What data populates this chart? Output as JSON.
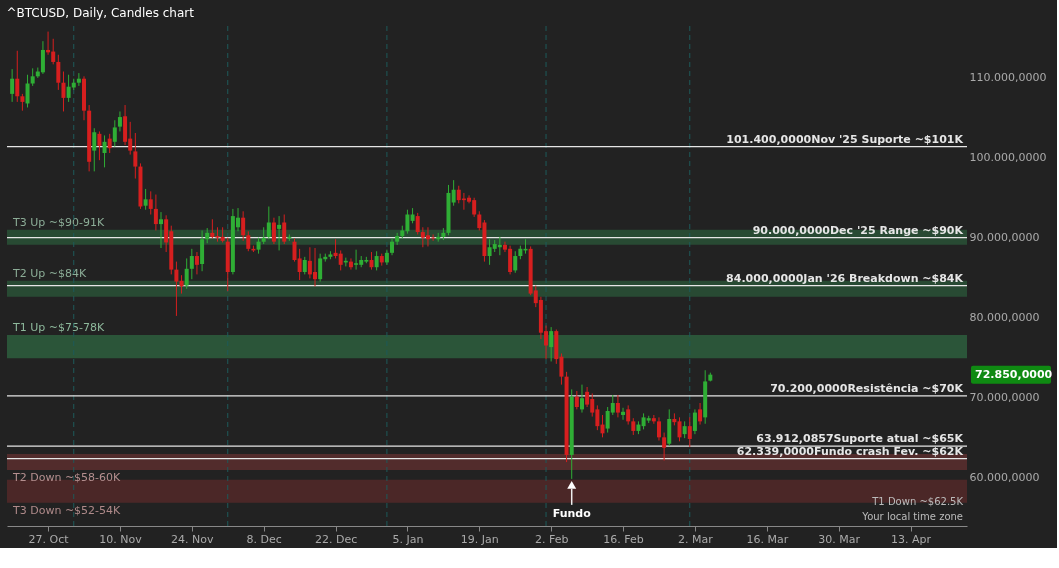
{
  "chart_data": {
    "type": "candlestick",
    "title": "^BTCUSD, Daily, Candles chart",
    "x": [
      "2025-10-20",
      "2025-10-21",
      "2025-10-22",
      "2025-10-23",
      "2025-10-24",
      "2025-10-25",
      "2025-10-26",
      "2025-10-27",
      "2025-10-28",
      "2025-10-29",
      "2025-10-30",
      "2025-10-31",
      "2025-11-01",
      "2025-11-02",
      "2025-11-03",
      "2025-11-04",
      "2025-11-05",
      "2025-11-06",
      "2025-11-07",
      "2025-11-08",
      "2025-11-09",
      "2025-11-10",
      "2025-11-11",
      "2025-11-12",
      "2025-11-13",
      "2025-11-14",
      "2025-11-15",
      "2025-11-16",
      "2025-11-17",
      "2025-11-18",
      "2025-11-19",
      "2025-11-20",
      "2025-11-21",
      "2025-11-22",
      "2025-11-23",
      "2025-11-24",
      "2025-11-25",
      "2025-11-26",
      "2025-11-27",
      "2025-11-28",
      "2025-11-29",
      "2025-11-30",
      "2025-12-01",
      "2025-12-02",
      "2025-12-03",
      "2025-12-04",
      "2025-12-05",
      "2025-12-06",
      "2025-12-07",
      "2025-12-08",
      "2025-12-09",
      "2025-12-10",
      "2025-12-11",
      "2025-12-12",
      "2025-12-13",
      "2025-12-14",
      "2025-12-15",
      "2025-12-16",
      "2025-12-17",
      "2025-12-18",
      "2025-12-19",
      "2025-12-20",
      "2025-12-21",
      "2025-12-22",
      "2025-12-23",
      "2025-12-24",
      "2025-12-25",
      "2025-12-26",
      "2025-12-27",
      "2025-12-28",
      "2025-12-29",
      "2025-12-30",
      "2025-12-31",
      "2026-01-01",
      "2026-01-02",
      "2026-01-03",
      "2026-01-04",
      "2026-01-05",
      "2026-01-06",
      "2026-01-07",
      "2026-01-08",
      "2026-01-09",
      "2026-01-10",
      "2026-01-11",
      "2026-01-12",
      "2026-01-13",
      "2026-01-14",
      "2026-01-15",
      "2026-01-16",
      "2026-01-17",
      "2026-01-18",
      "2026-01-19",
      "2026-01-20",
      "2026-01-21",
      "2026-01-22",
      "2026-01-23",
      "2026-01-24",
      "2026-01-25",
      "2026-01-26",
      "2026-01-27",
      "2026-01-28",
      "2026-01-29",
      "2026-01-30",
      "2026-01-31",
      "2026-02-01",
      "2026-02-02",
      "2026-02-03",
      "2026-02-04",
      "2026-02-05",
      "2026-02-06",
      "2026-02-07",
      "2026-02-08",
      "2026-02-09",
      "2026-02-10",
      "2026-02-11",
      "2026-02-12",
      "2026-02-13",
      "2026-02-14",
      "2026-02-15",
      "2026-02-16",
      "2026-02-17",
      "2026-02-18",
      "2026-02-19",
      "2026-02-20",
      "2026-02-21",
      "2026-02-22",
      "2026-02-23",
      "2026-02-24",
      "2026-02-25",
      "2026-02-26",
      "2026-02-27",
      "2026-02-28",
      "2026-03-01",
      "2026-03-02",
      "2026-03-03",
      "2026-03-04",
      "2026-03-05"
    ],
    "ohlc": [
      [
        108000,
        111100,
        107000,
        109900
      ],
      [
        109900,
        113400,
        107000,
        107700
      ],
      [
        107700,
        108000,
        105900,
        107000
      ],
      [
        106800,
        110400,
        106300,
        109300
      ],
      [
        109300,
        111200,
        109000,
        110200
      ],
      [
        110200,
        111300,
        110000,
        110800
      ],
      [
        110700,
        114600,
        110500,
        113500
      ],
      [
        113500,
        115800,
        112900,
        113200
      ],
      [
        113300,
        114900,
        111700,
        112000
      ],
      [
        112000,
        112900,
        108500,
        109400
      ],
      [
        109400,
        110800,
        105800,
        107500
      ],
      [
        107500,
        110400,
        107000,
        108900
      ],
      [
        108800,
        109900,
        108500,
        109400
      ],
      [
        109400,
        110600,
        109000,
        109900
      ],
      [
        109900,
        110200,
        104700,
        105900
      ],
      [
        105900,
        106600,
        98300,
        99500
      ],
      [
        100900,
        103700,
        98300,
        103200
      ],
      [
        103000,
        103300,
        99700,
        101500
      ],
      [
        100600,
        102800,
        98800,
        102000
      ],
      [
        102400,
        103000,
        100600,
        101200
      ],
      [
        102000,
        104700,
        101400,
        103800
      ],
      [
        103900,
        105800,
        103300,
        105100
      ],
      [
        105200,
        106600,
        101600,
        102000
      ],
      [
        102400,
        104500,
        100400,
        100900
      ],
      [
        100800,
        103100,
        97400,
        98900
      ],
      [
        98900,
        99300,
        93600,
        93900
      ],
      [
        94000,
        96100,
        93500,
        94800
      ],
      [
        94800,
        95800,
        92900,
        93600
      ],
      [
        93600,
        95400,
        90900,
        91700
      ],
      [
        91700,
        93200,
        88700,
        92300
      ],
      [
        92300,
        92800,
        88200,
        89400
      ],
      [
        90800,
        91500,
        85400,
        86000
      ],
      [
        86000,
        87000,
        80200,
        84500
      ],
      [
        84600,
        85300,
        83000,
        83900
      ],
      [
        84000,
        87400,
        83600,
        86100
      ],
      [
        86100,
        88600,
        84800,
        87700
      ],
      [
        87700,
        88200,
        85400,
        86600
      ],
      [
        86700,
        90900,
        85800,
        89800
      ],
      [
        89800,
        91200,
        89300,
        90600
      ],
      [
        90600,
        92300,
        89900,
        90100
      ],
      [
        90200,
        91300,
        89500,
        90000
      ],
      [
        90100,
        91300,
        89400,
        89600
      ],
      [
        89500,
        90000,
        83300,
        85700
      ],
      [
        85700,
        93600,
        85400,
        92700
      ],
      [
        91300,
        93700,
        90800,
        92500
      ],
      [
        92500,
        93300,
        89600,
        90300
      ],
      [
        90300,
        90800,
        88300,
        88600
      ],
      [
        88600,
        89000,
        88200,
        88400
      ],
      [
        88500,
        90000,
        88000,
        89500
      ],
      [
        89500,
        91300,
        89200,
        90000
      ],
      [
        90100,
        93900,
        89800,
        91900
      ],
      [
        91900,
        92500,
        89200,
        89500
      ],
      [
        91100,
        92700,
        88400,
        91600
      ],
      [
        91900,
        92900,
        89200,
        89500
      ],
      [
        89900,
        90400,
        89600,
        90100
      ],
      [
        89500,
        89900,
        87000,
        87200
      ],
      [
        87400,
        88600,
        84700,
        85700
      ],
      [
        85700,
        87600,
        85400,
        87200
      ],
      [
        87100,
        88800,
        84900,
        85400
      ],
      [
        85700,
        88700,
        83900,
        84800
      ],
      [
        84800,
        88000,
        84500,
        87400
      ],
      [
        87300,
        88000,
        87000,
        87600
      ],
      [
        87600,
        88300,
        87300,
        87900
      ],
      [
        88100,
        89800,
        87400,
        87700
      ],
      [
        88000,
        88400,
        85900,
        86600
      ],
      [
        86900,
        87500,
        86400,
        87100
      ],
      [
        87000,
        87400,
        86000,
        86300
      ],
      [
        86600,
        88500,
        86000,
        86800
      ],
      [
        86600,
        87700,
        86300,
        87200
      ],
      [
        87000,
        87600,
        86800,
        87200
      ],
      [
        87200,
        88200,
        86000,
        86300
      ],
      [
        86300,
        88300,
        85900,
        87700
      ],
      [
        87700,
        88000,
        86500,
        86900
      ],
      [
        86900,
        88500,
        86600,
        88100
      ],
      [
        88100,
        89900,
        87800,
        89500
      ],
      [
        89500,
        90600,
        89100,
        90200
      ],
      [
        90200,
        91500,
        89900,
        90900
      ],
      [
        90800,
        93500,
        90500,
        92900
      ],
      [
        92100,
        93700,
        91800,
        92900
      ],
      [
        92700,
        93100,
        90400,
        90700
      ],
      [
        90700,
        91300,
        88800,
        90000
      ],
      [
        90300,
        91300,
        88900,
        89800
      ],
      [
        90000,
        90400,
        89600,
        89900
      ],
      [
        89800,
        90600,
        89500,
        90100
      ],
      [
        90100,
        91200,
        89700,
        90600
      ],
      [
        90600,
        96600,
        90300,
        95600
      ],
      [
        94400,
        97200,
        94000,
        96000
      ],
      [
        96000,
        96500,
        94300,
        94700
      ],
      [
        94900,
        95600,
        93500,
        94700
      ],
      [
        95000,
        95300,
        94300,
        94500
      ],
      [
        94700,
        95000,
        92600,
        92900
      ],
      [
        92900,
        93300,
        90900,
        91200
      ],
      [
        91900,
        92200,
        87000,
        87700
      ],
      [
        87700,
        89800,
        86600,
        88800
      ],
      [
        88600,
        89700,
        88200,
        89200
      ],
      [
        88800,
        90100,
        87800,
        89100
      ],
      [
        89100,
        89500,
        88200,
        88500
      ],
      [
        88600,
        89000,
        85400,
        85700
      ],
      [
        85900,
        88300,
        85600,
        87700
      ],
      [
        87700,
        89000,
        87300,
        88600
      ],
      [
        88400,
        89800,
        88000,
        88600
      ],
      [
        88600,
        88900,
        82800,
        83000
      ],
      [
        83400,
        84000,
        81300,
        81800
      ],
      [
        82200,
        82600,
        77300,
        78100
      ],
      [
        78300,
        79000,
        74800,
        76500
      ],
      [
        76300,
        78800,
        74500,
        78300
      ],
      [
        78300,
        78500,
        74200,
        74800
      ],
      [
        75100,
        75500,
        71600,
        72600
      ],
      [
        72600,
        73200,
        61900,
        62800
      ],
      [
        62800,
        71000,
        59800,
        70100
      ],
      [
        70100,
        70800,
        68500,
        68800
      ],
      [
        68500,
        71600,
        68100,
        69900
      ],
      [
        70700,
        71300,
        68800,
        69100
      ],
      [
        69800,
        70500,
        67600,
        68100
      ],
      [
        68500,
        69000,
        65900,
        66400
      ],
      [
        66600,
        67800,
        65000,
        65500
      ],
      [
        66100,
        68800,
        65600,
        68300
      ],
      [
        68100,
        70300,
        67800,
        69300
      ],
      [
        69300,
        70300,
        67500,
        68100
      ],
      [
        67800,
        68700,
        67200,
        68200
      ],
      [
        68500,
        69000,
        66600,
        67000
      ],
      [
        67000,
        67400,
        65300,
        65800
      ],
      [
        65800,
        67000,
        65400,
        66600
      ],
      [
        66400,
        68000,
        66000,
        67500
      ],
      [
        67100,
        67700,
        66800,
        67400
      ],
      [
        67400,
        67800,
        66700,
        67000
      ],
      [
        67000,
        67500,
        64600,
        65000
      ],
      [
        65000,
        65600,
        62100,
        63700
      ],
      [
        64200,
        68500,
        63900,
        67300
      ],
      [
        67300,
        68000,
        66500,
        66900
      ],
      [
        67000,
        67500,
        64500,
        65000
      ],
      [
        65400,
        67000,
        64900,
        66400
      ],
      [
        66400,
        67500,
        63800,
        64800
      ],
      [
        65800,
        68500,
        65400,
        68100
      ],
      [
        68500,
        69300,
        66600,
        67000
      ],
      [
        67500,
        73400,
        66700,
        72000
      ],
      [
        72100,
        73100,
        72000,
        72850
      ]
    ],
    "xlim": [
      "2025-10-19",
      "2026-04-24"
    ],
    "xticks": [
      {
        "value": "2025-10-27",
        "label": "27. Oct"
      },
      {
        "value": "2025-11-10",
        "label": "10. Nov"
      },
      {
        "value": "2025-11-24",
        "label": "24. Nov"
      },
      {
        "value": "2025-12-08",
        "label": "8. Dec"
      },
      {
        "value": "2025-12-22",
        "label": "22. Dec"
      },
      {
        "value": "2026-01-05",
        "label": "5. Jan"
      },
      {
        "value": "2026-01-19",
        "label": "19. Jan"
      },
      {
        "value": "2026-02-02",
        "label": "2. Feb"
      },
      {
        "value": "2026-02-16",
        "label": "16. Feb"
      },
      {
        "value": "2026-03-02",
        "label": "2. Mar"
      },
      {
        "value": "2026-03-16",
        "label": "16. Mar"
      },
      {
        "value": "2026-03-30",
        "label": "30. Mar"
      },
      {
        "value": "2026-04-13",
        "label": "13. Apr"
      }
    ],
    "ylim": [
      53900,
      116500
    ],
    "yticks": [
      {
        "value": 60000,
        "label": "60.000,0000"
      },
      {
        "value": 70000,
        "label": "70.000,0000"
      },
      {
        "value": 80000,
        "label": "80.000,0000"
      },
      {
        "value": 90000,
        "label": "90.000,0000"
      },
      {
        "value": 100000,
        "label": "100.000,0000"
      },
      {
        "value": 110000,
        "label": "110.000,0000"
      }
    ],
    "ref_lines": [
      {
        "axis": "x",
        "value": "2025-11-01",
        "label": null,
        "color": "#1d5a5a",
        "line_style": "dashed"
      },
      {
        "axis": "x",
        "value": "2025-12-01",
        "label": null,
        "color": "#1d5a5a",
        "line_style": "dashed"
      },
      {
        "axis": "x",
        "value": "2026-01-01",
        "label": null,
        "color": "#1d5a5a",
        "line_style": "dashed"
      },
      {
        "axis": "x",
        "value": "2026-02-01",
        "label": null,
        "color": "#1d5a5a",
        "line_style": "dashed"
      },
      {
        "axis": "x",
        "value": "2026-03-01",
        "label": null,
        "color": "#1d5a5a",
        "line_style": "dashed"
      },
      {
        "axis": "y",
        "value": 101400,
        "label": "101.400,0000Nov '25 Suporte ~$101K",
        "color": "#e6e6e6",
        "line_style": "solid"
      },
      {
        "axis": "y",
        "value": 90000,
        "label": "90.000,0000Dec '25 Range ~$90K",
        "color": "#e6e6e6",
        "line_style": "solid"
      },
      {
        "axis": "y",
        "value": 84000,
        "label": "84.000,0000Jan '26 Breakdown ~$84K",
        "color": "#e6e6e6",
        "line_style": "solid"
      },
      {
        "axis": "y",
        "value": 70200,
        "label": "70.200,0000Resistência ~$70K",
        "color": "#e6e6e6",
        "line_style": "solid"
      },
      {
        "axis": "y",
        "value": 63912.0857,
        "label": "63.912,0857Suporte atual ~$65K",
        "color": "#e6e6e6",
        "line_style": "solid"
      },
      {
        "axis": "y",
        "value": 62339,
        "label": "62.339,0000Fundo crash Fev. ~$62K",
        "color": "#e6e6e6",
        "line_style": "solid"
      }
    ],
    "bands": [
      {
        "axis": "y",
        "from": 89100,
        "to": 91000,
        "label": "T3 Up ~$90-91K",
        "color": "#2e6b42"
      },
      {
        "axis": "y",
        "from": 82600,
        "to": 84600,
        "label": "T2 Up ~$84K",
        "color": "#2e6b42"
      },
      {
        "axis": "y",
        "from": 74900,
        "to": 77800,
        "label": "T1 Up ~$75-78K",
        "color": "#33804c"
      },
      {
        "axis": "y",
        "from": 60900,
        "to": 62900,
        "label": "T2 Down ~$58-60K",
        "color": "#7a3434"
      },
      {
        "axis": "y",
        "from": 56800,
        "to": 59700,
        "label": "T3 Down ~$52-54K",
        "color": "#6e2c2c"
      }
    ],
    "annotations": [
      {
        "text": "Fundo",
        "x": "2026-02-06",
        "y": 59800
      },
      "72.850,0000",
      "T1 Down ~$62.5K",
      "Your local time zone"
    ]
  }
}
